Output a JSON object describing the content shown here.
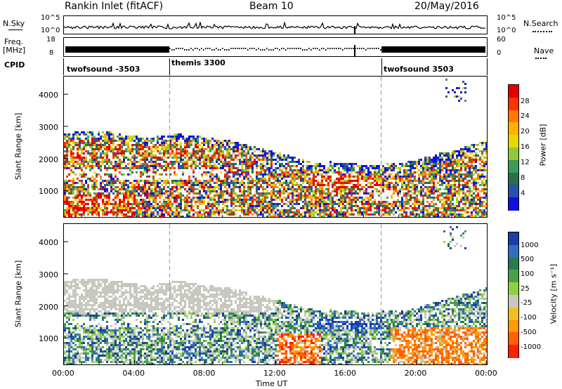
{
  "header": {
    "station": "Rankin Inlet (fitACF)",
    "beam": "Beam 10",
    "date": "20/May/2016"
  },
  "top_panel": {
    "left_label": "N.Sky",
    "left_ticks": [
      "10^5",
      "10^0"
    ],
    "right_label": "N.Search",
    "right_ticks": [
      "10^5",
      "10^0"
    ]
  },
  "freq_panel": {
    "left_label_1": "Freq.",
    "left_label_2": "[MHz]",
    "left_ticks": [
      "18",
      "8"
    ],
    "right_label": "Nave",
    "right_ticks": [
      "60",
      "0"
    ]
  },
  "cpid": {
    "label": "CPID",
    "segments": [
      {
        "name": "twofsound -3503",
        "start_hour": 0
      },
      {
        "name": "themis 3300",
        "start_hour": 6
      },
      {
        "name": "twofsound 3503",
        "start_hour": 18
      }
    ]
  },
  "chart_data": [
    {
      "type": "heatmap",
      "name": "Power",
      "ylabel": "Slant Range [km]",
      "xlabel": "Time UT",
      "xlim_hours": [
        0,
        24
      ],
      "ylim": [
        180,
        4550
      ],
      "yticks": [
        "1000",
        "2000",
        "3000",
        "4000"
      ],
      "xticks": [
        "00:00",
        "04:00",
        "08:00",
        "12:00",
        "16:00",
        "20:00",
        "00:00"
      ],
      "colorbar": {
        "label": "Power [dB]",
        "ticks": [
          "28",
          "24",
          "20",
          "16",
          "12",
          "8",
          "4"
        ],
        "colors": [
          "#e60000",
          "#ff3300",
          "#ff7a00",
          "#ffb000",
          "#e8d800",
          "#90c83c",
          "#3a9a58",
          "#2a6e4a",
          "#2850b0",
          "#1010e0"
        ]
      }
    },
    {
      "type": "heatmap",
      "name": "Velocity",
      "ylabel": "Slant Range [km]",
      "xlabel": "Time UT",
      "xlim_hours": [
        0,
        24
      ],
      "ylim": [
        180,
        4550
      ],
      "yticks": [
        "1000",
        "2000",
        "3000",
        "4000"
      ],
      "xticks": [
        "00:00",
        "04:00",
        "08:00",
        "12:00",
        "16:00",
        "20:00",
        "00:00"
      ],
      "colorbar": {
        "label": "Velocity [m s⁻¹]",
        "ticks": [
          "1000",
          "500",
          "100",
          "25",
          "-25",
          "-100",
          "-500",
          "-1000"
        ],
        "colors": [
          "#1a3ea8",
          "#2f6fc0",
          "#2a7a50",
          "#4aa048",
          "#90d040",
          "#c8c8c0",
          "#f0c020",
          "#ff9a00",
          "#ff6000",
          "#ff2000"
        ]
      }
    }
  ],
  "x_axis": {
    "title": "Time UT",
    "ticks": [
      "00:00",
      "04:00",
      "08:00",
      "12:00",
      "16:00",
      "20:00",
      "00:00"
    ]
  }
}
